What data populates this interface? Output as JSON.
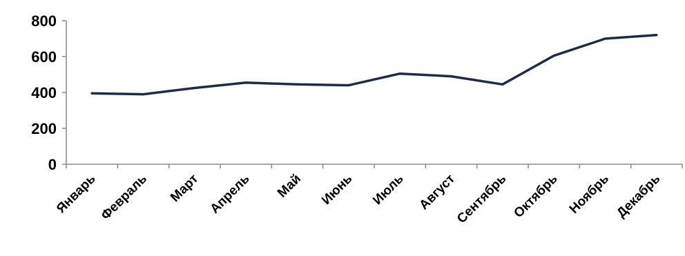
{
  "chart_data": {
    "type": "line",
    "title": "",
    "xlabel": "",
    "ylabel": "",
    "categories": [
      "Январь",
      "Февраль",
      "Март",
      "Апрель",
      "Май",
      "Июнь",
      "Июль",
      "Август",
      "Сентябрь",
      "Октябрь",
      "Ноябрь",
      "Декабрь"
    ],
    "series": [
      {
        "values": [
          395,
          390,
          425,
          455,
          445,
          440,
          505,
          490,
          445,
          605,
          700,
          720
        ]
      }
    ],
    "ylim": [
      0,
      800
    ],
    "yticks": [
      "0",
      "200",
      "400",
      "600",
      "800"
    ],
    "grid": false,
    "legend": "none",
    "colors": {
      "line": "#1f2a44",
      "axis": "#888888",
      "text": "#000000"
    }
  }
}
